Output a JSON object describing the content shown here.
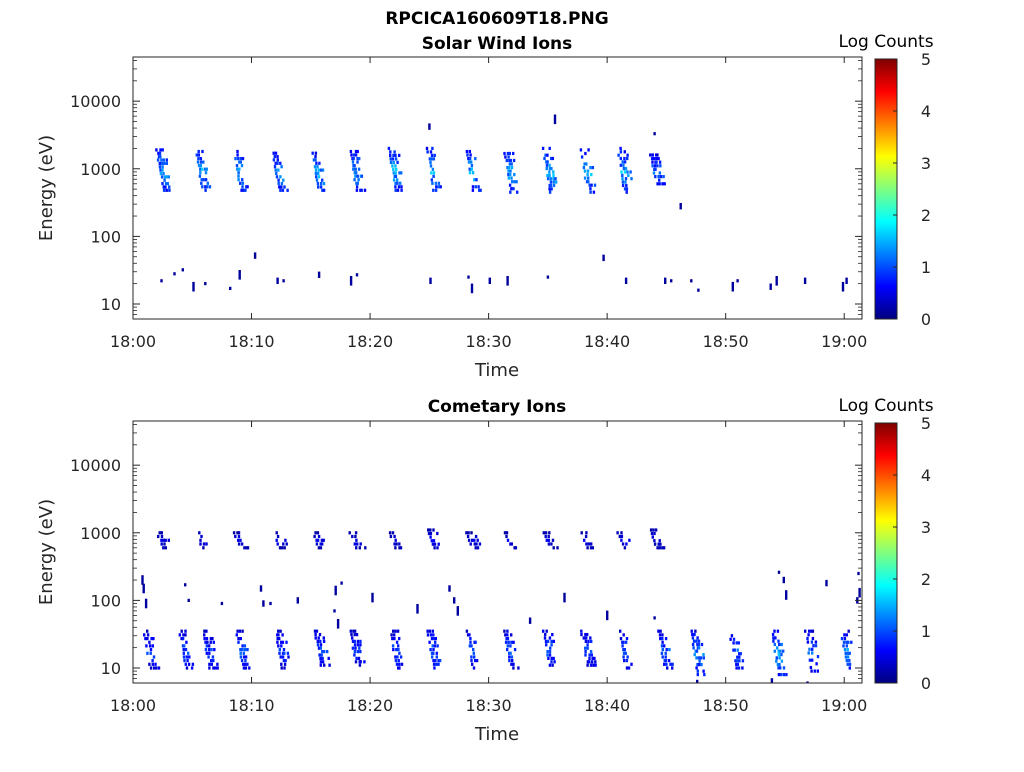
{
  "figure": {
    "title": "RPCICA160609T18.PNG"
  },
  "colormap": {
    "name": "jet",
    "stops": [
      "#00007f",
      "#0000ff",
      "#007fff",
      "#00ffff",
      "#7fff7f",
      "#ffff00",
      "#ff7f00",
      "#ff0000",
      "#7f0000"
    ]
  },
  "chart_data": [
    {
      "type": "heatmap",
      "title": "Solar Wind Ions",
      "xlabel": "Time",
      "ylabel": "Energy (eV)",
      "x_ticks": [
        "18:00",
        "18:10",
        "18:20",
        "18:30",
        "18:40",
        "18:50",
        "19:00"
      ],
      "x_tick_minutes": [
        0,
        10,
        20,
        30,
        40,
        50,
        60
      ],
      "xlim_minutes": [
        0,
        61.5
      ],
      "yscale": "log",
      "ylim": [
        6,
        45000
      ],
      "y_ticks": [
        "10",
        "100",
        "1000",
        "10000"
      ],
      "y_tick_values": [
        10,
        100,
        1000,
        10000
      ],
      "colorbar": {
        "label": "Log Counts",
        "range": [
          0,
          5
        ],
        "ticks": [
          "0",
          "1",
          "2",
          "3",
          "4",
          "5"
        ]
      },
      "clusters": [
        {
          "t": 2.3,
          "e_low": 480,
          "e_high": 1900,
          "peak": 1.6
        },
        {
          "t": 5.6,
          "e_low": 480,
          "e_high": 1800,
          "peak": 1.7
        },
        {
          "t": 8.8,
          "e_low": 480,
          "e_high": 1800,
          "peak": 1.6
        },
        {
          "t": 12.1,
          "e_low": 480,
          "e_high": 1700,
          "peak": 1.6
        },
        {
          "t": 15.4,
          "e_low": 480,
          "e_high": 1700,
          "peak": 1.7
        },
        {
          "t": 18.6,
          "e_low": 480,
          "e_high": 1800,
          "peak": 1.6
        },
        {
          "t": 21.9,
          "e_low": 480,
          "e_high": 2000,
          "peak": 1.7
        },
        {
          "t": 25.1,
          "e_low": 480,
          "e_high": 2000,
          "peak": 1.8
        },
        {
          "t": 28.4,
          "e_low": 480,
          "e_high": 1800,
          "peak": 1.7
        },
        {
          "t": 31.6,
          "e_low": 450,
          "e_high": 1900,
          "peak": 1.6
        },
        {
          "t": 34.9,
          "e_low": 450,
          "e_high": 2000,
          "peak": 1.7
        },
        {
          "t": 38.1,
          "e_low": 450,
          "e_high": 1900,
          "peak": 1.6
        },
        {
          "t": 41.2,
          "e_low": 450,
          "e_high": 2000,
          "peak": 1.6
        },
        {
          "t": 43.9,
          "e_low": 600,
          "e_high": 1600,
          "peak": 1.3
        }
      ],
      "sparse": [
        {
          "t": 2.3,
          "e": 22
        },
        {
          "t": 3.4,
          "e": 28
        },
        {
          "t": 4.1,
          "e": 32
        },
        {
          "t": 5.0,
          "e": 18
        },
        {
          "t": 6.0,
          "e": 20
        },
        {
          "t": 8.1,
          "e": 17
        },
        {
          "t": 8.9,
          "e": 27
        },
        {
          "t": 10.2,
          "e": 52
        },
        {
          "t": 12.1,
          "e": 22
        },
        {
          "t": 12.6,
          "e": 22
        },
        {
          "t": 15.6,
          "e": 27
        },
        {
          "t": 18.3,
          "e": 22
        },
        {
          "t": 18.8,
          "e": 27
        },
        {
          "t": 25.0,
          "e": 22
        },
        {
          "t": 24.9,
          "e": 4200
        },
        {
          "t": 28.2,
          "e": 25
        },
        {
          "t": 28.5,
          "e": 17
        },
        {
          "t": 30.0,
          "e": 22
        },
        {
          "t": 31.5,
          "e": 22
        },
        {
          "t": 34.9,
          "e": 25
        },
        {
          "t": 35.5,
          "e": 5400
        },
        {
          "t": 39.6,
          "e": 48
        },
        {
          "t": 41.5,
          "e": 22
        },
        {
          "t": 43.9,
          "e": 3300
        },
        {
          "t": 46.1,
          "e": 280
        },
        {
          "t": 44.8,
          "e": 22
        },
        {
          "t": 45.3,
          "e": 22
        },
        {
          "t": 47.0,
          "e": 22
        },
        {
          "t": 47.6,
          "e": 16
        },
        {
          "t": 50.5,
          "e": 18
        },
        {
          "t": 50.9,
          "e": 22
        },
        {
          "t": 53.7,
          "e": 18
        },
        {
          "t": 54.2,
          "e": 22
        },
        {
          "t": 56.6,
          "e": 22
        },
        {
          "t": 59.8,
          "e": 18
        },
        {
          "t": 60.1,
          "e": 22
        }
      ]
    },
    {
      "type": "heatmap",
      "title": "Cometary Ions",
      "xlabel": "Time",
      "ylabel": "Energy (eV)",
      "x_ticks": [
        "18:00",
        "18:10",
        "18:20",
        "18:30",
        "18:40",
        "18:50",
        "19:00"
      ],
      "x_tick_minutes": [
        0,
        10,
        20,
        30,
        40,
        50,
        60
      ],
      "xlim_minutes": [
        0,
        61.5
      ],
      "yscale": "log",
      "ylim": [
        6,
        45000
      ],
      "y_ticks": [
        "10",
        "100",
        "1000",
        "10000"
      ],
      "y_tick_values": [
        10,
        100,
        1000,
        10000
      ],
      "colorbar": {
        "label": "Log Counts",
        "range": [
          0,
          5
        ],
        "ticks": [
          "0",
          "1",
          "2",
          "3",
          "4",
          "5"
        ]
      },
      "clusters": [
        {
          "t": 2.3,
          "e_low": 600,
          "e_high": 1000,
          "peak": 0.6
        },
        {
          "t": 5.6,
          "e_low": 600,
          "e_high": 1000,
          "peak": 0.6
        },
        {
          "t": 8.8,
          "e_low": 600,
          "e_high": 1000,
          "peak": 0.6
        },
        {
          "t": 12.1,
          "e_low": 600,
          "e_high": 1000,
          "peak": 0.6
        },
        {
          "t": 15.4,
          "e_low": 600,
          "e_high": 1000,
          "peak": 0.6
        },
        {
          "t": 18.6,
          "e_low": 600,
          "e_high": 1000,
          "peak": 0.6
        },
        {
          "t": 21.9,
          "e_low": 600,
          "e_high": 1000,
          "peak": 0.6
        },
        {
          "t": 25.1,
          "e_low": 600,
          "e_high": 1100,
          "peak": 0.7
        },
        {
          "t": 28.4,
          "e_low": 600,
          "e_high": 1000,
          "peak": 0.6
        },
        {
          "t": 31.6,
          "e_low": 600,
          "e_high": 1000,
          "peak": 0.6
        },
        {
          "t": 34.9,
          "e_low": 600,
          "e_high": 1000,
          "peak": 0.6
        },
        {
          "t": 38.1,
          "e_low": 600,
          "e_high": 1000,
          "peak": 0.6
        },
        {
          "t": 41.2,
          "e_low": 600,
          "e_high": 1000,
          "peak": 0.6
        },
        {
          "t": 43.9,
          "e_low": 600,
          "e_high": 1100,
          "peak": 0.6
        },
        {
          "t": 1.2,
          "e_low": 10,
          "e_high": 35,
          "peak": 1.0
        },
        {
          "t": 4.2,
          "e_low": 10,
          "e_high": 35,
          "peak": 1.1
        },
        {
          "t": 6.2,
          "e_low": 10,
          "e_high": 35,
          "peak": 1.0
        },
        {
          "t": 9.0,
          "e_low": 10,
          "e_high": 35,
          "peak": 1.1
        },
        {
          "t": 12.3,
          "e_low": 10,
          "e_high": 35,
          "peak": 1.0
        },
        {
          "t": 15.6,
          "e_low": 11,
          "e_high": 35,
          "peak": 1.1
        },
        {
          "t": 18.6,
          "e_low": 11,
          "e_high": 35,
          "peak": 1.0
        },
        {
          "t": 22.0,
          "e_low": 10,
          "e_high": 35,
          "peak": 1.1
        },
        {
          "t": 25.1,
          "e_low": 10,
          "e_high": 35,
          "peak": 1.2
        },
        {
          "t": 28.4,
          "e_low": 10,
          "e_high": 35,
          "peak": 1.1
        },
        {
          "t": 31.6,
          "e_low": 10,
          "e_high": 35,
          "peak": 1.1
        },
        {
          "t": 34.9,
          "e_low": 11,
          "e_high": 35,
          "peak": 1.2
        },
        {
          "t": 38.1,
          "e_low": 11,
          "e_high": 35,
          "peak": 1.1
        },
        {
          "t": 41.3,
          "e_low": 10,
          "e_high": 35,
          "peak": 1.1
        },
        {
          "t": 44.6,
          "e_low": 10,
          "e_high": 35,
          "peak": 1.2
        },
        {
          "t": 47.4,
          "e_low": 8,
          "e_high": 35,
          "peak": 1.4
        },
        {
          "t": 50.6,
          "e_low": 10,
          "e_high": 30,
          "peak": 1.3
        },
        {
          "t": 54.2,
          "e_low": 8,
          "e_high": 35,
          "peak": 1.6
        },
        {
          "t": 57.0,
          "e_low": 9,
          "e_high": 35,
          "peak": 1.2
        },
        {
          "t": 60.0,
          "e_low": 10,
          "e_high": 35,
          "peak": 1.5
        }
      ],
      "sparse": [
        {
          "t": 0.7,
          "e": 200
        },
        {
          "t": 0.8,
          "e": 150
        },
        {
          "t": 1.0,
          "e": 90
        },
        {
          "t": 4.3,
          "e": 170
        },
        {
          "t": 4.6,
          "e": 100
        },
        {
          "t": 7.4,
          "e": 90
        },
        {
          "t": 10.7,
          "e": 150
        },
        {
          "t": 10.9,
          "e": 90
        },
        {
          "t": 11.5,
          "e": 90
        },
        {
          "t": 13.8,
          "e": 100
        },
        {
          "t": 16.9,
          "e": 70
        },
        {
          "t": 17.0,
          "e": 140
        },
        {
          "t": 17.5,
          "e": 180
        },
        {
          "t": 17.2,
          "e": 45
        },
        {
          "t": 20.1,
          "e": 110
        },
        {
          "t": 23.9,
          "e": 75
        },
        {
          "t": 26.6,
          "e": 150
        },
        {
          "t": 27.0,
          "e": 100
        },
        {
          "t": 27.3,
          "e": 70
        },
        {
          "t": 33.4,
          "e": 50
        },
        {
          "t": 36.3,
          "e": 110
        },
        {
          "t": 39.9,
          "e": 60
        },
        {
          "t": 43.9,
          "e": 55
        },
        {
          "t": 54.4,
          "e": 260
        },
        {
          "t": 54.8,
          "e": 200
        },
        {
          "t": 55.0,
          "e": 120
        },
        {
          "t": 58.4,
          "e": 180
        },
        {
          "t": 61.1,
          "e": 250
        },
        {
          "t": 61.2,
          "e": 130
        },
        {
          "t": 61.0,
          "e": 100
        },
        {
          "t": 47.5,
          "e": 6
        },
        {
          "t": 53.8,
          "e": 6
        },
        {
          "t": 56.8,
          "e": 6
        }
      ]
    }
  ]
}
